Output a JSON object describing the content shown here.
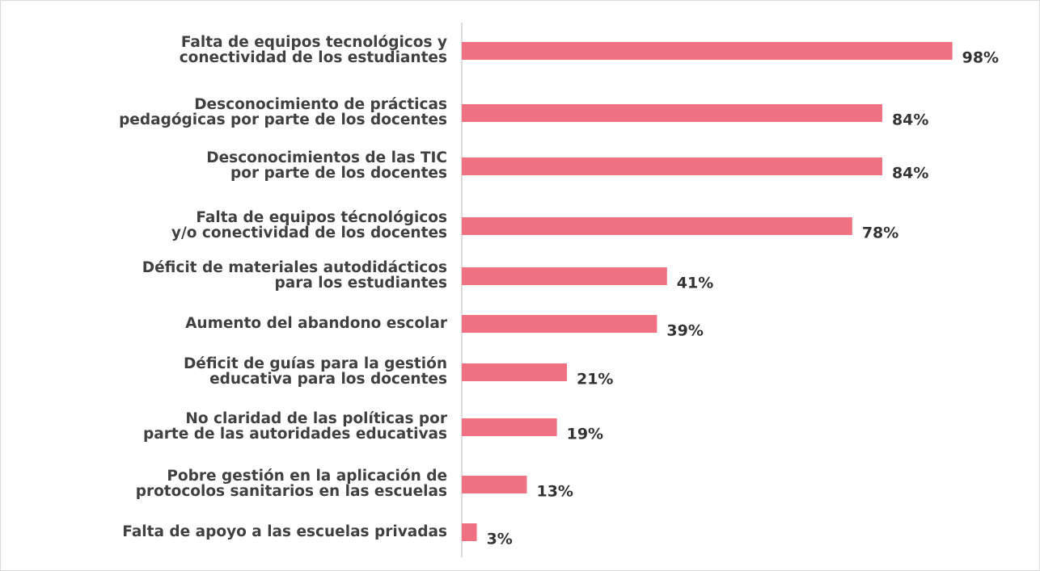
{
  "chart_data": {
    "type": "barh",
    "categories": [
      [
        "Falta de equipos tecnológicos y",
        "conectividad de los estudiantes"
      ],
      [
        "Desconocimiento de prácticas",
        "pedagógicas por parte de los docentes"
      ],
      [
        "Desconocimientos de las TIC",
        "por parte de los docentes"
      ],
      [
        "Falta de equipos técnológicos",
        "y/o conectividad de los docentes"
      ],
      [
        "Déficit de materiales autodidácticos",
        "para los estudiantes"
      ],
      [
        "Aumento del abandono escolar"
      ],
      [
        "Déficit de guías para la gestión",
        "educativa para los docentes"
      ],
      [
        "No claridad de las políticas por",
        "parte de las autoridades educativas"
      ],
      [
        "Pobre gestión en la aplicación de",
        "protocolos sanitarios en las escuelas"
      ],
      [
        "Falta de apoyo a las escuelas privadas"
      ]
    ],
    "values": [
      98,
      84,
      84,
      78,
      41,
      39,
      21,
      19,
      13,
      3
    ],
    "value_labels": [
      "98%",
      "84%",
      "84%",
      "78%",
      "41%",
      "39%",
      "21%",
      "19%",
      "13%",
      "3%"
    ],
    "color": "#f07181"
  }
}
